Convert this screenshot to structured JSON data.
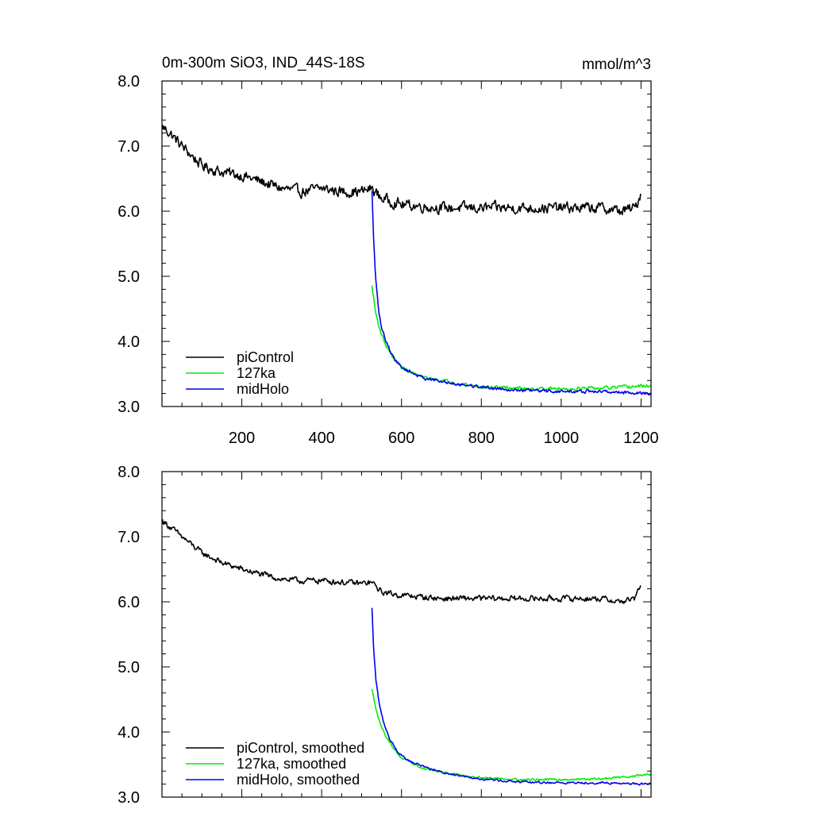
{
  "header": {
    "left_title": "0m-300m SiO3, IND_44S-18S",
    "right_title": "mmol/m^3"
  },
  "colors": {
    "piControl": "#000000",
    "127ka": "#00ee00",
    "midHolo": "#0000ee"
  },
  "chart_data": [
    {
      "type": "line",
      "title": "0m-300m SiO3, IND_44S-18S",
      "units": "mmol/m^3",
      "xlim": [
        0,
        1225
      ],
      "ylim": [
        3.0,
        8.0
      ],
      "x_ticks": [
        200,
        400,
        600,
        800,
        1000,
        1200
      ],
      "x_tick_labels": [
        "200",
        "400",
        "600",
        "800",
        "1000",
        "1200"
      ],
      "y_ticks": [
        3.0,
        4.0,
        5.0,
        6.0,
        7.0,
        8.0
      ],
      "y_tick_labels": [
        "3.0",
        "4.0",
        "5.0",
        "6.0",
        "7.0",
        "8.0"
      ],
      "legend": {
        "position": "bottom-left",
        "entries": [
          "piControl",
          "127ka",
          "midHolo"
        ]
      },
      "series": [
        {
          "name": "piControl",
          "key": "piControl",
          "noise": 0.13,
          "points": [
            [
              1,
              7.3
            ],
            [
              20,
              7.2
            ],
            [
              50,
              7.0
            ],
            [
              100,
              6.7
            ],
            [
              150,
              6.6
            ],
            [
              200,
              6.55
            ],
            [
              250,
              6.45
            ],
            [
              300,
              6.35
            ],
            [
              350,
              6.3
            ],
            [
              400,
              6.35
            ],
            [
              450,
              6.3
            ],
            [
              500,
              6.3
            ],
            [
              525,
              6.35
            ],
            [
              550,
              6.2
            ],
            [
              600,
              6.1
            ],
            [
              700,
              6.05
            ],
            [
              800,
              6.05
            ],
            [
              900,
              6.05
            ],
            [
              1000,
              6.05
            ],
            [
              1100,
              6.05
            ],
            [
              1150,
              6.0
            ],
            [
              1185,
              6.05
            ],
            [
              1195,
              6.2
            ],
            [
              1200,
              6.3
            ]
          ]
        },
        {
          "name": "127ka",
          "key": "127ka",
          "noise": 0.04,
          "points": [
            [
              526,
              4.85
            ],
            [
              535,
              4.45
            ],
            [
              545,
              4.2
            ],
            [
              560,
              3.95
            ],
            [
              580,
              3.75
            ],
            [
              600,
              3.6
            ],
            [
              650,
              3.45
            ],
            [
              700,
              3.4
            ],
            [
              800,
              3.3
            ],
            [
              900,
              3.28
            ],
            [
              1000,
              3.27
            ],
            [
              1100,
              3.28
            ],
            [
              1225,
              3.32
            ]
          ]
        },
        {
          "name": "midHolo",
          "key": "midHolo",
          "noise": 0.04,
          "points": [
            [
              526,
              6.3
            ],
            [
              530,
              5.6
            ],
            [
              535,
              5.0
            ],
            [
              542,
              4.5
            ],
            [
              550,
              4.2
            ],
            [
              565,
              3.95
            ],
            [
              580,
              3.75
            ],
            [
              600,
              3.6
            ],
            [
              650,
              3.45
            ],
            [
              700,
              3.38
            ],
            [
              800,
              3.3
            ],
            [
              900,
              3.25
            ],
            [
              1000,
              3.23
            ],
            [
              1100,
              3.23
            ],
            [
              1225,
              3.2
            ]
          ]
        }
      ]
    },
    {
      "type": "line",
      "xlim": [
        0,
        1225
      ],
      "ylim": [
        3.0,
        8.0
      ],
      "y_ticks": [
        3.0,
        4.0,
        5.0,
        6.0,
        7.0,
        8.0
      ],
      "y_tick_labels": [
        "3.0",
        "4.0",
        "5.0",
        "6.0",
        "7.0",
        "8.0"
      ],
      "legend": {
        "position": "bottom-left",
        "entries": [
          "piControl, smoothed",
          "127ka, smoothed",
          "midHolo, smoothed"
        ]
      },
      "series": [
        {
          "name": "piControl, smoothed",
          "key": "piControl",
          "noise": 0.07,
          "points": [
            [
              1,
              7.25
            ],
            [
              20,
              7.15
            ],
            [
              50,
              7.0
            ],
            [
              100,
              6.75
            ],
            [
              150,
              6.6
            ],
            [
              200,
              6.5
            ],
            [
              250,
              6.42
            ],
            [
              300,
              6.35
            ],
            [
              350,
              6.32
            ],
            [
              400,
              6.33
            ],
            [
              450,
              6.3
            ],
            [
              500,
              6.28
            ],
            [
              525,
              6.3
            ],
            [
              550,
              6.15
            ],
            [
              600,
              6.1
            ],
            [
              700,
              6.05
            ],
            [
              800,
              6.05
            ],
            [
              900,
              6.05
            ],
            [
              1000,
              6.05
            ],
            [
              1100,
              6.05
            ],
            [
              1150,
              6.0
            ],
            [
              1185,
              6.05
            ],
            [
              1195,
              6.2
            ],
            [
              1200,
              6.3
            ]
          ]
        },
        {
          "name": "127ka, smoothed",
          "key": "127ka",
          "noise": 0.025,
          "points": [
            [
              526,
              4.65
            ],
            [
              535,
              4.4
            ],
            [
              545,
              4.15
            ],
            [
              560,
              3.95
            ],
            [
              580,
              3.75
            ],
            [
              600,
              3.6
            ],
            [
              650,
              3.45
            ],
            [
              700,
              3.38
            ],
            [
              800,
              3.3
            ],
            [
              900,
              3.27
            ],
            [
              1000,
              3.27
            ],
            [
              1100,
              3.28
            ],
            [
              1225,
              3.35
            ]
          ]
        },
        {
          "name": "midHolo, smoothed",
          "key": "midHolo",
          "noise": 0.025,
          "points": [
            [
              526,
              5.9
            ],
            [
              530,
              5.3
            ],
            [
              536,
              4.8
            ],
            [
              545,
              4.4
            ],
            [
              555,
              4.15
            ],
            [
              570,
              3.9
            ],
            [
              590,
              3.7
            ],
            [
              620,
              3.55
            ],
            [
              700,
              3.38
            ],
            [
              800,
              3.28
            ],
            [
              900,
              3.23
            ],
            [
              1000,
              3.22
            ],
            [
              1100,
              3.22
            ],
            [
              1225,
              3.2
            ]
          ]
        }
      ]
    }
  ]
}
